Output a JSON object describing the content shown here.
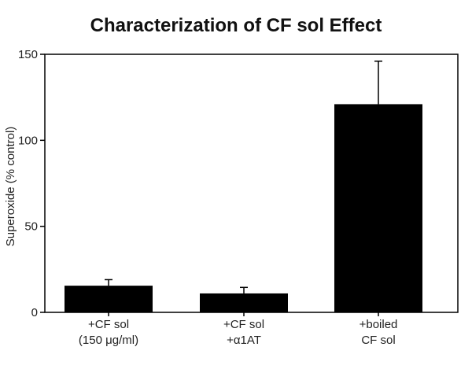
{
  "chart_data": {
    "type": "bar",
    "title": "Characterization of CF sol Effect",
    "xlabel": "",
    "ylabel": "Superoxide (% control)",
    "ylim": [
      0,
      150
    ],
    "yticks": [
      0,
      50,
      100,
      150
    ],
    "grid": false,
    "categories": [
      [
        "+CF sol",
        "(150 μg/ml)"
      ],
      [
        "+CF sol",
        "+α1AT"
      ],
      [
        "+boiled",
        "CF sol"
      ]
    ],
    "values": [
      15.5,
      11,
      121
    ],
    "errors": [
      3.5,
      3.5,
      25
    ],
    "bar_color": "#000000"
  }
}
